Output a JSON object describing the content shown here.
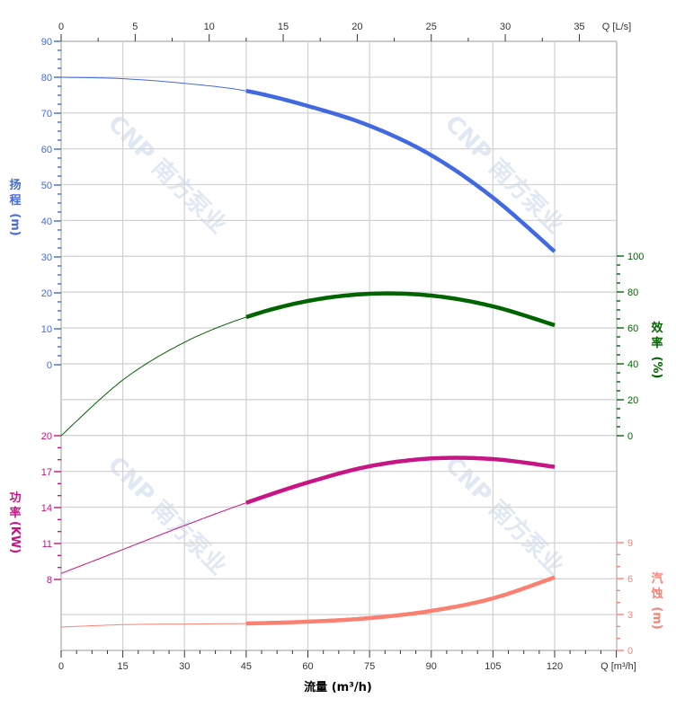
{
  "chart_data": {
    "type": "line",
    "xlabel": "流量 (m³/h)",
    "x_unit_label": "Q [m³/h]",
    "x_top_unit_label": "Q [L/s]",
    "xlim": [
      0,
      135
    ],
    "x_ticks": [
      0,
      15,
      30,
      45,
      60,
      75,
      90,
      105,
      120
    ],
    "x_top_ticks": [
      0,
      5,
      10,
      15,
      20,
      25,
      30,
      35
    ],
    "grid": true,
    "operating_range": [
      45,
      120
    ],
    "axes": {
      "head": {
        "label_chars": [
          "扬",
          "程"
        ],
        "unit": "(m)",
        "ticks": [
          90,
          80,
          70,
          60,
          50,
          40,
          30,
          20,
          10,
          0
        ],
        "range": [
          0,
          90
        ],
        "color": "#4169e1",
        "side": "left"
      },
      "efficiency": {
        "label_chars": [
          "效",
          "率"
        ],
        "unit": "(%)",
        "ticks": [
          100,
          80,
          60,
          40,
          20,
          0
        ],
        "range": [
          0,
          100
        ],
        "color": "#006400",
        "side": "right"
      },
      "power": {
        "label_chars": [
          "功",
          "率"
        ],
        "unit": "(KW)",
        "ticks": [
          20,
          17,
          14,
          11,
          8
        ],
        "range": [
          8,
          20
        ],
        "color": "#c71585",
        "side": "left"
      },
      "npsh": {
        "label_chars": [
          "汽",
          "蚀"
        ],
        "unit": "(m)",
        "ticks": [
          9,
          6,
          3,
          0
        ],
        "range": [
          0,
          9
        ],
        "color": "#fa8072",
        "side": "right"
      }
    },
    "series": [
      {
        "axis": "head",
        "x": [
          0,
          15,
          30,
          45,
          60,
          75,
          90,
          105,
          120
        ],
        "y": [
          80,
          79.6,
          78.3,
          76.2,
          72,
          66.5,
          58.3,
          46.5,
          31.5
        ],
        "color": "#4169e1"
      },
      {
        "axis": "efficiency",
        "x": [
          0,
          15,
          30,
          45,
          60,
          75,
          90,
          105,
          120
        ],
        "y": [
          0,
          31,
          52,
          66,
          75,
          79,
          78,
          72,
          61.5
        ],
        "color": "#006400"
      },
      {
        "axis": "power",
        "x": [
          0,
          15,
          30,
          45,
          60,
          75,
          90,
          105,
          120
        ],
        "y": [
          8.5,
          10.5,
          12.5,
          14.4,
          16.1,
          17.45,
          18.1,
          18.05,
          17.4
        ],
        "color": "#c71585"
      },
      {
        "axis": "npsh",
        "x": [
          0,
          15,
          30,
          45,
          60,
          75,
          90,
          105,
          120
        ],
        "y": [
          1.95,
          2.15,
          2.2,
          2.25,
          2.4,
          2.7,
          3.3,
          4.35,
          6.1
        ],
        "color": "#fa8072"
      }
    ]
  },
  "watermark": "CNP 南方泵业"
}
